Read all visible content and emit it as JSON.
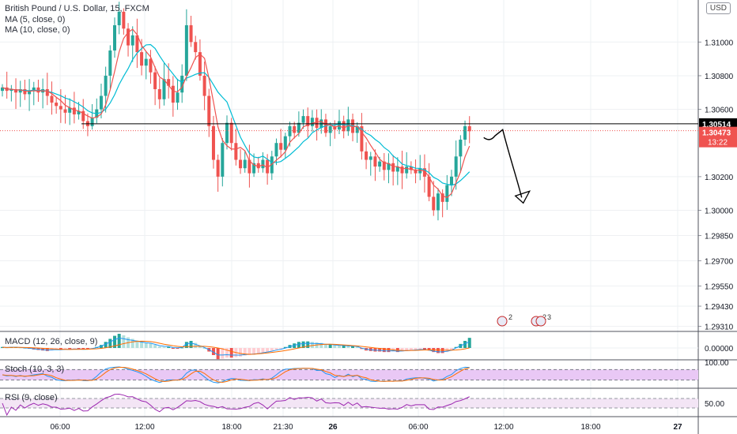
{
  "header": {
    "symbol": "British Pound / U.S. Dollar, 15, FXCM",
    "ma1": "MA (5, close, 0)",
    "ma2": "MA (10, close, 0)",
    "currency": "USD"
  },
  "colors": {
    "up": "#26a69a",
    "down": "#ef5350",
    "ma_fast": "#ef5350",
    "ma_slow": "#00bcd4",
    "rsi": "#9c27b0",
    "stoch_band": "#e9c8f5",
    "label_current": "#ef5350",
    "label_level": "#000000"
  },
  "chart_data": [
    {
      "type": "candlestick",
      "title": "British Pound / U.S. Dollar, 15, FXCM",
      "x_ticks": [
        "06:00",
        "12:00",
        "18:00",
        "21:30",
        "26",
        "06:00",
        "12:00",
        "18:00",
        "27"
      ],
      "y_ticks": [
        "1.31000",
        "1.30800",
        "1.30600",
        "1.30200",
        "1.30000",
        "1.29850",
        "1.29700",
        "1.29550",
        "1.29430",
        "1.29310"
      ],
      "ylim": [
        1.2928,
        1.3125
      ],
      "closes": [
        1.3073,
        1.3071,
        1.3072,
        1.307,
        1.3072,
        1.3069,
        1.3071,
        1.3073,
        1.307,
        1.3072,
        1.3068,
        1.3064,
        1.3062,
        1.306,
        1.3058,
        1.3061,
        1.3057,
        1.3059,
        1.3053,
        1.305,
        1.3055,
        1.306,
        1.3068,
        1.308,
        1.3095,
        1.311,
        1.3118,
        1.3108,
        1.3098,
        1.3104,
        1.3094,
        1.3086,
        1.309,
        1.3082,
        1.3072,
        1.3066,
        1.3078,
        1.3074,
        1.3064,
        1.307,
        1.308,
        1.311,
        1.31,
        1.3094,
        1.308,
        1.3068,
        1.305,
        1.303,
        1.302,
        1.304,
        1.3052,
        1.304,
        1.303,
        1.3025,
        1.303,
        1.3022,
        1.3028,
        1.3025,
        1.303,
        1.3022,
        1.3032,
        1.304,
        1.3036,
        1.3044,
        1.305,
        1.3046,
        1.3052,
        1.3056,
        1.305,
        1.3055,
        1.3049,
        1.3054,
        1.3046,
        1.305,
        1.3048,
        1.3053,
        1.3047,
        1.3054,
        1.3046,
        1.305,
        1.3035,
        1.303,
        1.3032,
        1.3026,
        1.3029,
        1.3024,
        1.3028,
        1.3023,
        1.3026,
        1.3022,
        1.3026,
        1.3024,
        1.3022,
        1.3025,
        1.302,
        1.3008,
        1.3,
        1.301,
        1.3005,
        1.3015,
        1.302,
        1.3032,
        1.3042,
        1.305,
        1.3047
      ],
      "current_price_label": "1.30473",
      "countdown_label": "13:22",
      "level_price": 1.30514,
      "level_label": "1.30514",
      "event_markers": [
        "2",
        "2",
        "3"
      ]
    },
    {
      "type": "bar",
      "title": "MACD (12, 26, close, 9)",
      "y_ticks": [
        "0.00000"
      ],
      "values": [
        2,
        1,
        2,
        2,
        1,
        0,
        -1,
        -3,
        -4,
        -5,
        -6,
        -5,
        -4,
        -4,
        -3,
        -3,
        -2,
        -2,
        -3,
        -3,
        -1,
        2,
        6,
        12,
        18,
        24,
        28,
        25,
        21,
        18,
        15,
        12,
        10,
        9,
        6,
        3,
        2,
        2,
        -1,
        -1,
        1,
        12,
        14,
        10,
        5,
        0,
        -7,
        -14,
        -22,
        -21,
        -19,
        -19,
        -18,
        -17,
        -15,
        -14,
        -13,
        -12,
        -10,
        -8,
        -6,
        -3,
        -1,
        2,
        6,
        9,
        12,
        13,
        13,
        12,
        11,
        10,
        8,
        8,
        6,
        5,
        5,
        4,
        4,
        3,
        -2,
        -5,
        -6,
        -7,
        -7,
        -8,
        -8,
        -7,
        -8,
        -7,
        -6,
        -5,
        -4,
        -3,
        -3,
        -5,
        -8,
        -10,
        -10,
        -8,
        -5,
        2,
        8,
        14,
        20
      ]
    },
    {
      "type": "line",
      "title": "Stoch (10, 3, 3)",
      "y_ticks": [
        "100.00"
      ],
      "ylim": [
        0,
        100
      ]
    },
    {
      "type": "line",
      "title": "RSI (9, close)",
      "y_ticks": [
        "50.00"
      ],
      "ylim": [
        0,
        100
      ]
    }
  ]
}
